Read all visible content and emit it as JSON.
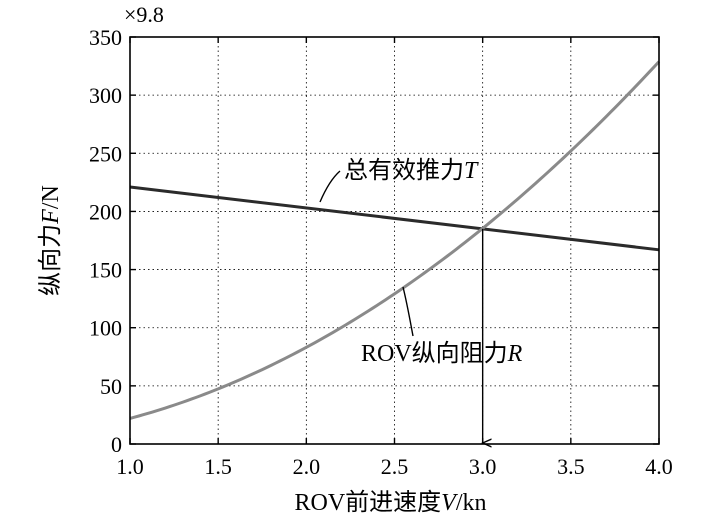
{
  "chart_data": {
    "type": "line",
    "xlabel_parts": [
      "ROV前进速度",
      "V",
      "/kn"
    ],
    "ylabel_parts": [
      "纵向力",
      "F",
      "/N"
    ],
    "y_multiplier": "×9.8",
    "xlim": [
      1.0,
      4.0
    ],
    "ylim": [
      0,
      350
    ],
    "x_ticks": [
      "1.0",
      "1.5",
      "2.0",
      "2.5",
      "3.0",
      "3.5",
      "4.0"
    ],
    "y_ticks": [
      "0",
      "50",
      "100",
      "150",
      "200",
      "250",
      "300",
      "350"
    ],
    "grid": true,
    "series": [
      {
        "name_parts": [
          "总有效推力",
          "T"
        ],
        "color": "#2b2b2b",
        "x": [
          1.0,
          4.0
        ],
        "y": [
          221,
          167
        ]
      },
      {
        "name_parts": [
          "ROV纵向阻力",
          "R"
        ],
        "color": "#8a8a8a",
        "x": [
          1.0,
          1.5,
          2.0,
          2.5,
          3.0,
          3.5,
          4.0
        ],
        "y": [
          22,
          47,
          84,
          129,
          185,
          252,
          329
        ]
      }
    ],
    "annotation": {
      "type": "vertical-line-arrow",
      "x": 3.0,
      "y_from": 185,
      "y_to": 0
    }
  }
}
